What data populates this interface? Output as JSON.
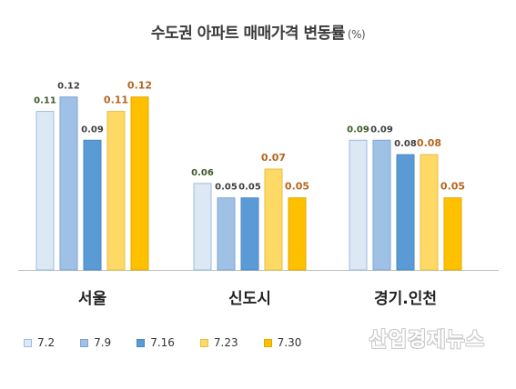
{
  "title": "수도권 아파트 매매가격 변동률",
  "unit": "(%)",
  "watermark": "산업경제뉴스",
  "chart_data": {
    "type": "bar",
    "title": "수도권 아파트 매매가격 변동률 (%)",
    "xlabel": "",
    "ylabel": "",
    "ylim": [
      0,
      0.14
    ],
    "grid": false,
    "legend_position": "bottom-left",
    "categories": [
      "서울",
      "신도시",
      "경기.인천"
    ],
    "series": [
      {
        "name": "7.2",
        "values": [
          0.11,
          0.06,
          0.09
        ],
        "color": "#dde8f5",
        "border": "#9dbbe0",
        "label_color": "#3d5a2a"
      },
      {
        "name": "7.9",
        "values": [
          0.12,
          0.05,
          0.09
        ],
        "color": "#9fc1e6",
        "border": "#7ea5d3",
        "label_color": "#404040"
      },
      {
        "name": "7.16",
        "values": [
          0.09,
          0.05,
          0.08
        ],
        "color": "#5b9bd5",
        "border": "#4a88c2",
        "label_color": "#404040"
      },
      {
        "name": "7.23",
        "values": [
          0.11,
          0.07,
          0.08
        ],
        "color": "#ffd966",
        "border": "#e8bf3e",
        "label_color": "#b5651d"
      },
      {
        "name": "7.30",
        "values": [
          0.12,
          0.05,
          0.05
        ],
        "color": "#ffc000",
        "border": "#e0a800",
        "label_color": "#b5651d"
      }
    ],
    "value_labels": [
      [
        "0.11",
        "0.06",
        "0.09"
      ],
      [
        "0.12",
        "0.05",
        "0.09"
      ],
      [
        "0.09",
        "0.05",
        "0.08"
      ],
      [
        "0.11",
        "0.07",
        "0.08"
      ],
      [
        "0.12",
        "0.05",
        "0.05"
      ]
    ]
  }
}
